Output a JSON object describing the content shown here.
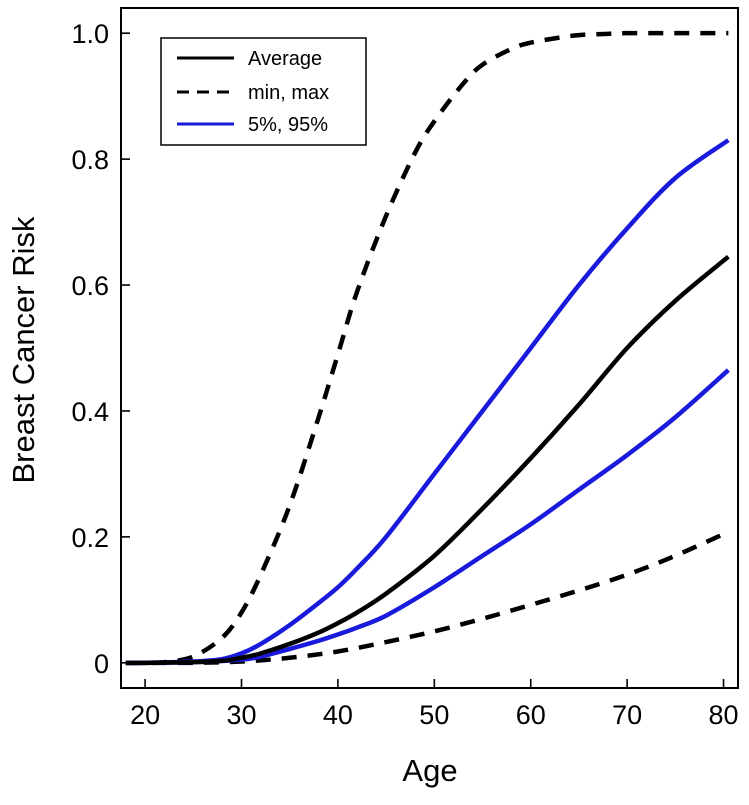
{
  "chart_data": {
    "type": "line",
    "title": "",
    "xlabel": "Age",
    "ylabel": "Breast Cancer Risk",
    "xlim": [
      17.5,
      81.5
    ],
    "ylim": [
      -0.04,
      1.04
    ],
    "xticks": [
      20,
      30,
      40,
      50,
      60,
      70,
      80
    ],
    "xtick_labels": [
      "20",
      "30",
      "40",
      "50",
      "60",
      "70",
      "80"
    ],
    "yticks": [
      0,
      0.2,
      0.4,
      0.6,
      0.8,
      1.0
    ],
    "ytick_labels": [
      "0",
      "0.2",
      "0.4",
      "0.6",
      "0.8",
      "1.0"
    ],
    "grid": false,
    "legend_position": "top-left",
    "legend": [
      {
        "label": "Average",
        "color": "#000000",
        "dash": "solid"
      },
      {
        "label": "min, max",
        "color": "#000000",
        "dash": "dashed"
      },
      {
        "label": "5%, 95%",
        "color": "#1a1adc",
        "dash": "solid"
      }
    ],
    "series": [
      {
        "legend_entry": "Average",
        "color": "#000000",
        "dash": "solid",
        "x": [
          18,
          20,
          25,
          28,
          30,
          32,
          35,
          38,
          40,
          42,
          45,
          50,
          55,
          60,
          65,
          70,
          75,
          80.5
        ],
        "y": [
          0,
          0,
          0.001,
          0.003,
          0.008,
          0.015,
          0.03,
          0.048,
          0.063,
          0.08,
          0.11,
          0.17,
          0.245,
          0.325,
          0.41,
          0.5,
          0.575,
          0.645
        ]
      },
      {
        "legend_entry": "min, max",
        "color": "#000000",
        "dash": "dashed",
        "x": [
          18,
          20,
          22,
          25,
          28,
          30,
          32,
          35,
          38,
          40,
          42,
          45,
          48,
          50,
          53,
          55,
          58,
          60,
          63,
          65,
          68,
          70,
          75,
          80.5
        ],
        "y": [
          0,
          0,
          0.001,
          0.01,
          0.04,
          0.08,
          0.14,
          0.25,
          0.39,
          0.49,
          0.59,
          0.71,
          0.81,
          0.86,
          0.92,
          0.95,
          0.975,
          0.985,
          0.993,
          0.997,
          0.999,
          1.0,
          1.0,
          1.0
        ]
      },
      {
        "legend_entry": "min, max",
        "color": "#000000",
        "dash": "dashed",
        "x": [
          18,
          20,
          25,
          30,
          35,
          40,
          45,
          50,
          55,
          60,
          65,
          70,
          75,
          80.5
        ],
        "y": [
          0,
          0,
          0,
          0.002,
          0.008,
          0.018,
          0.033,
          0.05,
          0.07,
          0.092,
          0.115,
          0.14,
          0.17,
          0.208
        ]
      },
      {
        "legend_entry": "5%, 95%",
        "color": "#1a1adc",
        "dash": "solid",
        "x": [
          18,
          20,
          25,
          28,
          30,
          32,
          35,
          38,
          40,
          42,
          45,
          50,
          55,
          60,
          65,
          70,
          75,
          80.5
        ],
        "y": [
          0,
          0,
          0.002,
          0.006,
          0.015,
          0.03,
          0.06,
          0.095,
          0.12,
          0.15,
          0.2,
          0.3,
          0.4,
          0.5,
          0.6,
          0.69,
          0.77,
          0.83
        ]
      },
      {
        "legend_entry": "5%, 95%",
        "color": "#1a1adc",
        "dash": "solid",
        "x": [
          18,
          20,
          25,
          30,
          32,
          35,
          38,
          40,
          42,
          45,
          50,
          55,
          60,
          65,
          70,
          75,
          80.5
        ],
        "y": [
          0,
          0,
          0.001,
          0.005,
          0.01,
          0.022,
          0.035,
          0.045,
          0.056,
          0.075,
          0.12,
          0.17,
          0.22,
          0.275,
          0.33,
          0.39,
          0.465
        ]
      }
    ]
  }
}
